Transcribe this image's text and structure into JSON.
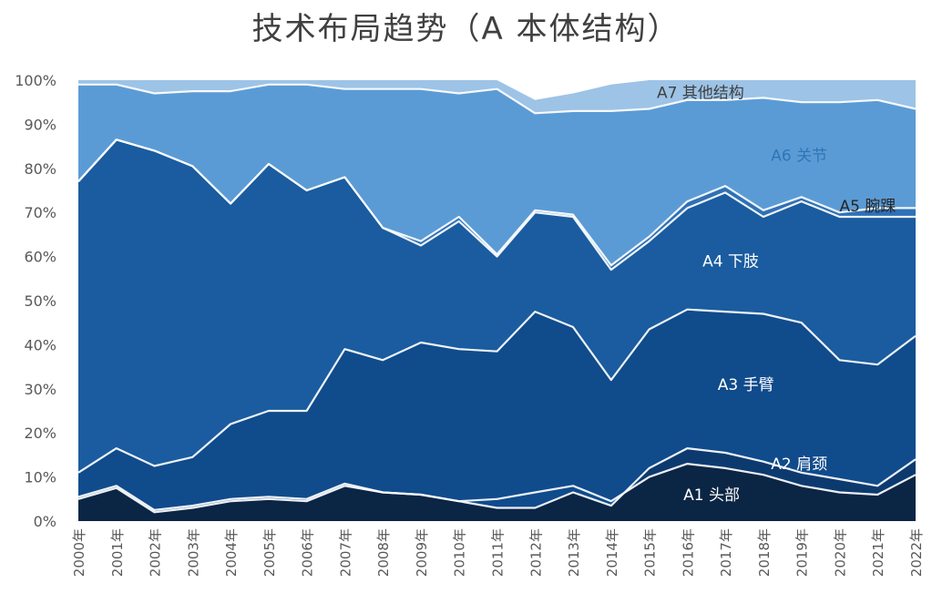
{
  "chart_data": {
    "type": "area",
    "stacked": "percent",
    "title": "技术布局趋势（A 本体结构）",
    "categories": [
      "2000年",
      "2001年",
      "2002年",
      "2003年",
      "2004年",
      "2005年",
      "2006年",
      "2007年",
      "2008年",
      "2009年",
      "2010年",
      "2011年",
      "2012年",
      "2013年",
      "2014年",
      "2015年",
      "2016年",
      "2017年",
      "2018年",
      "2019年",
      "2020年",
      "2021年",
      "2022年"
    ],
    "ylim": [
      0,
      100
    ],
    "yticks": [
      "0%",
      "10%",
      "20%",
      "30%",
      "40%",
      "50%",
      "60%",
      "70%",
      "80%",
      "90%",
      "100%"
    ],
    "grid": false,
    "legend": "none",
    "series": [
      {
        "name": "A1 头部",
        "color": "#0b2545",
        "values": [
          5,
          7.5,
          2,
          3,
          4.5,
          5,
          4.5,
          8,
          6.5,
          6,
          4.5,
          5,
          6.5,
          8,
          4.5,
          10,
          13,
          12,
          10.5,
          8,
          6.5,
          6,
          10.5
        ]
      },
      {
        "name": "A2 肩颈",
        "color": "#0d3a6e",
        "values": [
          0.5,
          0.5,
          0.5,
          0.5,
          0.5,
          0.5,
          0.5,
          0.5,
          0,
          0,
          0,
          -2,
          -3.5,
          -1.5,
          -1,
          2,
          3.5,
          3.5,
          3,
          3,
          3,
          2,
          3.5
        ]
      },
      {
        "name": "A3 手臂",
        "color": "#104b8c",
        "values": [
          5.5,
          8.5,
          10,
          11,
          17,
          19.5,
          20,
          30.5,
          30,
          34.5,
          34.5,
          35.5,
          44.5,
          37.5,
          28.5,
          31.5,
          31.5,
          32,
          33.5,
          34,
          27,
          27.5,
          28
        ]
      },
      {
        "name": "A4 下肢",
        "color": "#1a5c9f",
        "values": [
          66,
          70,
          71.5,
          66,
          50,
          56,
          50,
          39,
          30,
          22,
          29,
          21.5,
          22.5,
          25,
          25,
          20,
          23,
          27,
          22,
          27.5,
          32.5,
          33.5,
          27
        ]
      },
      {
        "name": "A5 腕踝",
        "color": "#2f71b6",
        "values": [
          0,
          0,
          0,
          0,
          0,
          0,
          0,
          0,
          0,
          1,
          1,
          0.5,
          0.5,
          0.5,
          1,
          1,
          1.5,
          1.5,
          1.5,
          1,
          1,
          2,
          2
        ]
      },
      {
        "name": "A6 关节",
        "color": "#5b9bd5",
        "values": [
          22,
          12.5,
          13,
          17,
          25.5,
          18,
          24,
          20,
          31.5,
          34.5,
          28,
          37.5,
          22,
          23.5,
          35,
          29,
          23,
          19.5,
          25.5,
          21.5,
          25,
          24.5,
          22.5
        ]
      },
      {
        "name": "A7 其他结构",
        "color": "#9dc3e6",
        "values": [
          1,
          1,
          3,
          2.5,
          2.5,
          1,
          1,
          2,
          2,
          2,
          3,
          2,
          3,
          4,
          6,
          6.5,
          4.5,
          4.5,
          4,
          5,
          5,
          4.5,
          6.5
        ]
      }
    ],
    "annotations": [
      {
        "text": "A7 其他结构",
        "series": 6,
        "at": 15.2,
        "value": 97.2,
        "color": "#404040"
      },
      {
        "text": "A6 关节",
        "series": 5,
        "at": 18.2,
        "value": 83,
        "color": "#2e75b6"
      },
      {
        "text": "A5 腕踝",
        "series": 4,
        "at": 20,
        "value": 71.5,
        "color": "#262626"
      },
      {
        "text": "A4 下肢",
        "series": 3,
        "at": 16.4,
        "value": 59,
        "color": "#ffffff"
      },
      {
        "text": "A3 手臂",
        "series": 2,
        "at": 16.8,
        "value": 31,
        "color": "#ffffff"
      },
      {
        "text": "A2 肩颈",
        "series": 1,
        "at": 18.2,
        "value": 13,
        "color": "#ffffff"
      },
      {
        "text": "A1 头部",
        "series": 0,
        "at": 15.9,
        "value": 6,
        "color": "#ffffff"
      }
    ]
  }
}
